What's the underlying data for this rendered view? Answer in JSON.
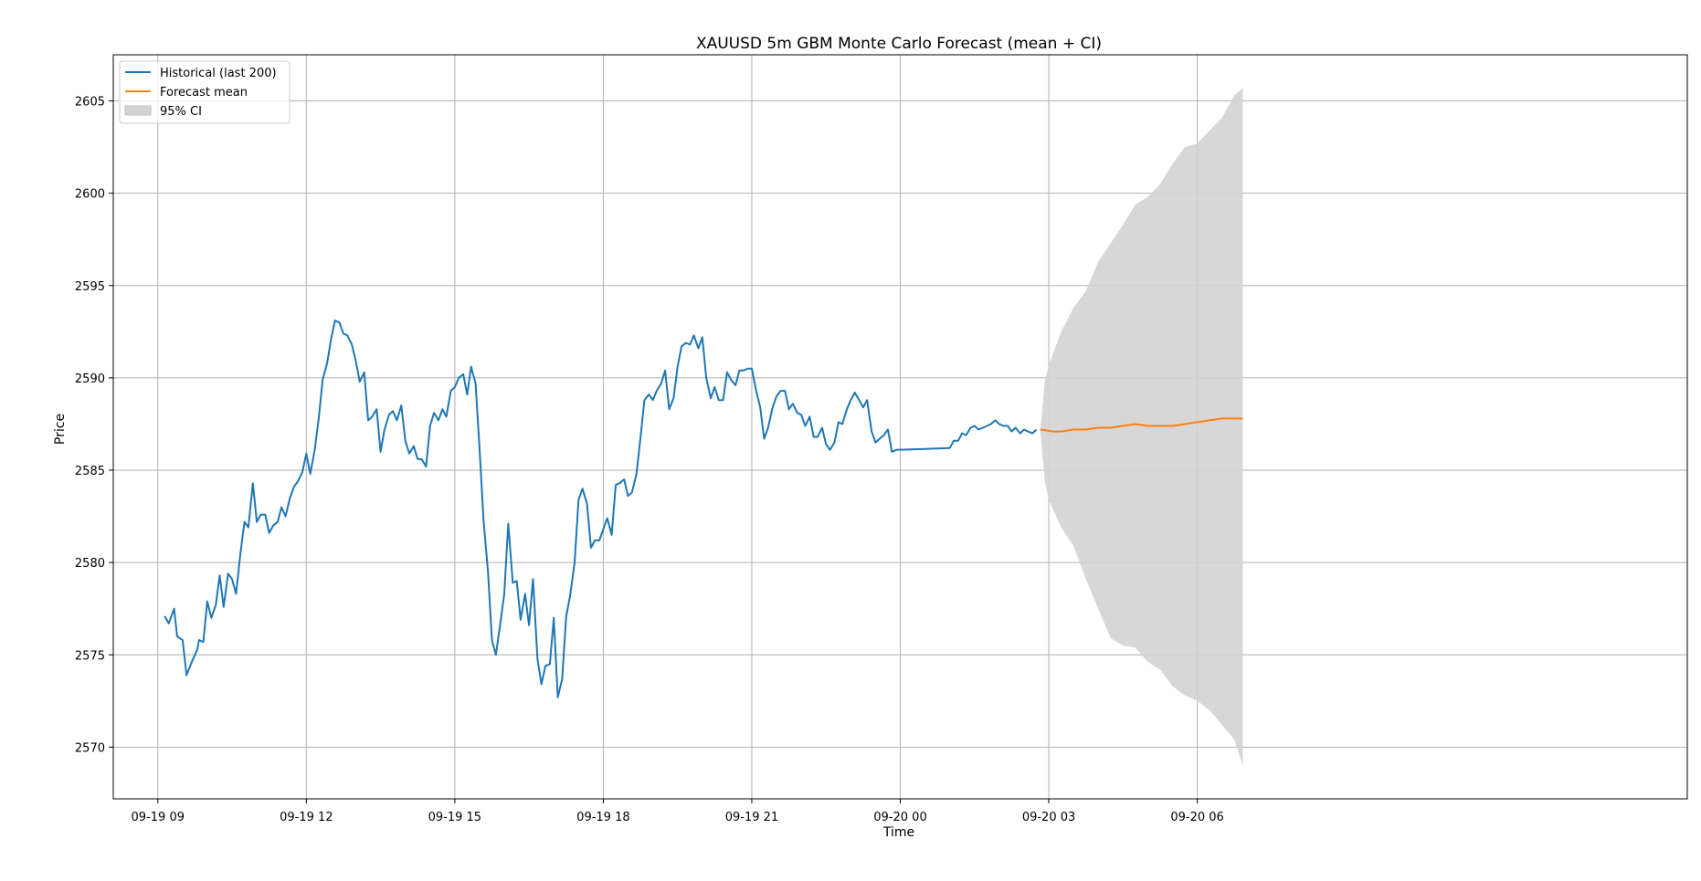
{
  "chart_data": {
    "type": "line",
    "title": "XAUUSD 5m GBM Monte Carlo Forecast (mean + CI)",
    "xlabel": "Time",
    "ylabel": "Price",
    "xlim_hours": [
      -0.9,
      30.9
    ],
    "ylim": [
      2567.2,
      2607.5
    ],
    "grid": true,
    "legend_position": "top-left",
    "x_ticks": [
      {
        "h": 0,
        "label": "09-19 09"
      },
      {
        "h": 3,
        "label": "09-19 12"
      },
      {
        "h": 6,
        "label": "09-19 15"
      },
      {
        "h": 9,
        "label": "09-19 18"
      },
      {
        "h": 12,
        "label": "09-19 21"
      },
      {
        "h": 15,
        "label": "09-20 00"
      },
      {
        "h": 18,
        "label": "09-20 03"
      },
      {
        "h": 21,
        "label": "09-20 06"
      }
    ],
    "y_ticks": [
      2570,
      2575,
      2580,
      2585,
      2590,
      2595,
      2600,
      2605
    ],
    "colors": {
      "historical": "#1f77b4",
      "forecast": "#ff7f0e",
      "ci": "#d3d3d3"
    },
    "series": [
      {
        "name": "Historical (last 200)",
        "points": [
          [
            0.14,
            2577.1
          ],
          [
            0.22,
            2576.7
          ],
          [
            0.33,
            2577.5
          ],
          [
            0.39,
            2576.0
          ],
          [
            0.5,
            2575.8
          ],
          [
            0.58,
            2573.9
          ],
          [
            0.7,
            2574.7
          ],
          [
            0.8,
            2575.3
          ],
          [
            0.83,
            2575.8
          ],
          [
            0.92,
            2575.7
          ],
          [
            1.0,
            2577.9
          ],
          [
            1.08,
            2577.0
          ],
          [
            1.17,
            2577.7
          ],
          [
            1.25,
            2579.3
          ],
          [
            1.33,
            2577.6
          ],
          [
            1.42,
            2579.4
          ],
          [
            1.5,
            2579.1
          ],
          [
            1.58,
            2578.3
          ],
          [
            1.67,
            2580.5
          ],
          [
            1.75,
            2582.2
          ],
          [
            1.83,
            2581.9
          ],
          [
            1.92,
            2584.3
          ],
          [
            2.0,
            2582.2
          ],
          [
            2.08,
            2582.6
          ],
          [
            2.17,
            2582.6
          ],
          [
            2.25,
            2581.6
          ],
          [
            2.33,
            2582.0
          ],
          [
            2.42,
            2582.2
          ],
          [
            2.5,
            2583.0
          ],
          [
            2.58,
            2582.5
          ],
          [
            2.67,
            2583.5
          ],
          [
            2.75,
            2584.1
          ],
          [
            2.83,
            2584.4
          ],
          [
            2.92,
            2584.9
          ],
          [
            3.0,
            2585.9
          ],
          [
            3.08,
            2584.8
          ],
          [
            3.17,
            2586.1
          ],
          [
            3.25,
            2587.8
          ],
          [
            3.33,
            2589.9
          ],
          [
            3.42,
            2590.8
          ],
          [
            3.5,
            2592.1
          ],
          [
            3.58,
            2593.1
          ],
          [
            3.67,
            2593.0
          ],
          [
            3.75,
            2592.4
          ],
          [
            3.83,
            2592.3
          ],
          [
            3.92,
            2591.8
          ],
          [
            4.0,
            2590.9
          ],
          [
            4.08,
            2589.8
          ],
          [
            4.17,
            2590.3
          ],
          [
            4.25,
            2587.7
          ],
          [
            4.33,
            2587.9
          ],
          [
            4.42,
            2588.3
          ],
          [
            4.5,
            2586.0
          ],
          [
            4.58,
            2587.2
          ],
          [
            4.67,
            2588.0
          ],
          [
            4.75,
            2588.2
          ],
          [
            4.83,
            2587.7
          ],
          [
            4.92,
            2588.5
          ],
          [
            5.0,
            2586.6
          ],
          [
            5.08,
            2585.9
          ],
          [
            5.17,
            2586.3
          ],
          [
            5.25,
            2585.6
          ],
          [
            5.33,
            2585.6
          ],
          [
            5.42,
            2585.2
          ],
          [
            5.5,
            2587.4
          ],
          [
            5.58,
            2588.1
          ],
          [
            5.67,
            2587.7
          ],
          [
            5.75,
            2588.3
          ],
          [
            5.83,
            2587.9
          ],
          [
            5.92,
            2589.3
          ],
          [
            6.0,
            2589.5
          ],
          [
            6.08,
            2590.0
          ],
          [
            6.17,
            2590.2
          ],
          [
            6.25,
            2589.1
          ],
          [
            6.33,
            2590.6
          ],
          [
            6.42,
            2589.7
          ],
          [
            6.5,
            2586.2
          ],
          [
            6.58,
            2582.3
          ],
          [
            6.67,
            2579.5
          ],
          [
            6.75,
            2575.8
          ],
          [
            6.83,
            2575.0
          ],
          [
            6.92,
            2576.7
          ],
          [
            7.0,
            2578.3
          ],
          [
            7.08,
            2582.1
          ],
          [
            7.17,
            2578.9
          ],
          [
            7.25,
            2579.0
          ],
          [
            7.33,
            2576.9
          ],
          [
            7.42,
            2578.3
          ],
          [
            7.5,
            2576.6
          ],
          [
            7.58,
            2579.1
          ],
          [
            7.67,
            2574.8
          ],
          [
            7.75,
            2573.4
          ],
          [
            7.83,
            2574.4
          ],
          [
            7.92,
            2574.5
          ],
          [
            8.0,
            2577.0
          ],
          [
            8.08,
            2572.7
          ],
          [
            8.17,
            2573.7
          ],
          [
            8.25,
            2577.1
          ],
          [
            8.33,
            2578.2
          ],
          [
            8.42,
            2580.0
          ],
          [
            8.5,
            2583.4
          ],
          [
            8.58,
            2584.0
          ],
          [
            8.67,
            2583.2
          ],
          [
            8.75,
            2580.8
          ],
          [
            8.83,
            2581.2
          ],
          [
            8.92,
            2581.2
          ],
          [
            9.0,
            2581.8
          ],
          [
            9.08,
            2582.4
          ],
          [
            9.17,
            2581.5
          ],
          [
            9.25,
            2584.2
          ],
          [
            9.33,
            2584.3
          ],
          [
            9.42,
            2584.5
          ],
          [
            9.5,
            2583.6
          ],
          [
            9.58,
            2583.8
          ],
          [
            9.67,
            2584.8
          ],
          [
            9.75,
            2586.7
          ],
          [
            9.83,
            2588.8
          ],
          [
            9.92,
            2589.1
          ],
          [
            10.0,
            2588.8
          ],
          [
            10.08,
            2589.3
          ],
          [
            10.17,
            2589.7
          ],
          [
            10.25,
            2590.4
          ],
          [
            10.33,
            2588.3
          ],
          [
            10.42,
            2588.9
          ],
          [
            10.5,
            2590.6
          ],
          [
            10.58,
            2591.7
          ],
          [
            10.67,
            2591.9
          ],
          [
            10.75,
            2591.8
          ],
          [
            10.83,
            2592.3
          ],
          [
            10.92,
            2591.6
          ],
          [
            11.0,
            2592.2
          ],
          [
            11.08,
            2590.0
          ],
          [
            11.17,
            2588.9
          ],
          [
            11.25,
            2589.5
          ],
          [
            11.33,
            2588.8
          ],
          [
            11.42,
            2588.8
          ],
          [
            11.5,
            2590.3
          ],
          [
            11.58,
            2589.9
          ],
          [
            11.67,
            2589.6
          ],
          [
            11.75,
            2590.4
          ],
          [
            11.83,
            2590.4
          ],
          [
            11.92,
            2590.5
          ],
          [
            12.0,
            2590.5
          ],
          [
            12.08,
            2589.4
          ],
          [
            12.17,
            2588.4
          ],
          [
            12.25,
            2586.7
          ],
          [
            12.33,
            2587.3
          ],
          [
            12.42,
            2588.4
          ],
          [
            12.5,
            2589.0
          ],
          [
            12.58,
            2589.3
          ],
          [
            12.67,
            2589.3
          ],
          [
            12.75,
            2588.3
          ],
          [
            12.83,
            2588.6
          ],
          [
            12.92,
            2588.1
          ],
          [
            13.0,
            2588.0
          ],
          [
            13.08,
            2587.4
          ],
          [
            13.17,
            2587.9
          ],
          [
            13.25,
            2586.8
          ],
          [
            13.33,
            2586.8
          ],
          [
            13.42,
            2587.3
          ],
          [
            13.5,
            2586.4
          ],
          [
            13.58,
            2586.1
          ],
          [
            13.67,
            2586.5
          ],
          [
            13.75,
            2587.6
          ],
          [
            13.83,
            2587.5
          ],
          [
            13.92,
            2588.3
          ],
          [
            14.0,
            2588.8
          ],
          [
            14.08,
            2589.2
          ],
          [
            14.17,
            2588.8
          ],
          [
            14.25,
            2588.4
          ],
          [
            14.33,
            2588.8
          ],
          [
            14.42,
            2587.1
          ],
          [
            14.5,
            2586.5
          ],
          [
            14.58,
            2586.7
          ],
          [
            14.67,
            2586.9
          ],
          [
            14.75,
            2587.2
          ],
          [
            14.83,
            2586.0
          ],
          [
            14.92,
            2586.1
          ],
          [
            16.0,
            2586.2
          ],
          [
            16.08,
            2586.6
          ],
          [
            16.17,
            2586.6
          ],
          [
            16.25,
            2587.0
          ],
          [
            16.33,
            2586.9
          ],
          [
            16.42,
            2587.3
          ],
          [
            16.5,
            2587.4
          ],
          [
            16.58,
            2587.2
          ],
          [
            16.67,
            2587.3
          ],
          [
            16.75,
            2587.4
          ],
          [
            16.83,
            2587.5
          ],
          [
            16.92,
            2587.7
          ],
          [
            17.0,
            2587.5
          ],
          [
            17.08,
            2587.4
          ],
          [
            17.17,
            2587.4
          ],
          [
            17.25,
            2587.1
          ],
          [
            17.33,
            2587.3
          ],
          [
            17.42,
            2587.0
          ],
          [
            17.5,
            2587.2
          ],
          [
            17.58,
            2587.1
          ],
          [
            17.67,
            2587.0
          ],
          [
            17.75,
            2587.2
          ]
        ]
      },
      {
        "name": "Forecast mean",
        "points": [
          [
            17.83,
            2587.2
          ],
          [
            18.08,
            2587.1
          ],
          [
            18.25,
            2587.1
          ],
          [
            18.5,
            2587.2
          ],
          [
            18.75,
            2587.2
          ],
          [
            19.0,
            2587.3
          ],
          [
            19.25,
            2587.3
          ],
          [
            19.5,
            2587.4
          ],
          [
            19.75,
            2587.5
          ],
          [
            20.0,
            2587.4
          ],
          [
            20.25,
            2587.4
          ],
          [
            20.5,
            2587.4
          ],
          [
            20.75,
            2587.5
          ],
          [
            21.0,
            2587.6
          ],
          [
            21.25,
            2587.7
          ],
          [
            21.5,
            2587.8
          ],
          [
            21.75,
            2587.8
          ],
          [
            21.92,
            2587.8
          ]
        ]
      },
      {
        "name": "95% CI",
        "x": [
          17.83,
          17.92,
          18.0,
          18.25,
          18.5,
          18.75,
          19.0,
          19.25,
          19.5,
          19.75,
          20.0,
          20.25,
          20.5,
          20.75,
          21.0,
          21.25,
          21.5,
          21.75,
          21.92
        ],
        "lower": [
          2587.1,
          2584.4,
          2583.4,
          2581.9,
          2580.9,
          2579.1,
          2577.5,
          2575.9,
          2575.5,
          2575.4,
          2574.6,
          2574.2,
          2573.3,
          2572.8,
          2572.5,
          2572.0,
          2571.2,
          2570.4,
          2569.0
        ],
        "upper": [
          2587.2,
          2589.8,
          2590.7,
          2592.5,
          2593.8,
          2594.7,
          2596.3,
          2597.3,
          2598.3,
          2599.4,
          2599.8,
          2600.5,
          2601.6,
          2602.5,
          2602.7,
          2603.4,
          2604.1,
          2605.3,
          2605.7
        ]
      }
    ]
  }
}
